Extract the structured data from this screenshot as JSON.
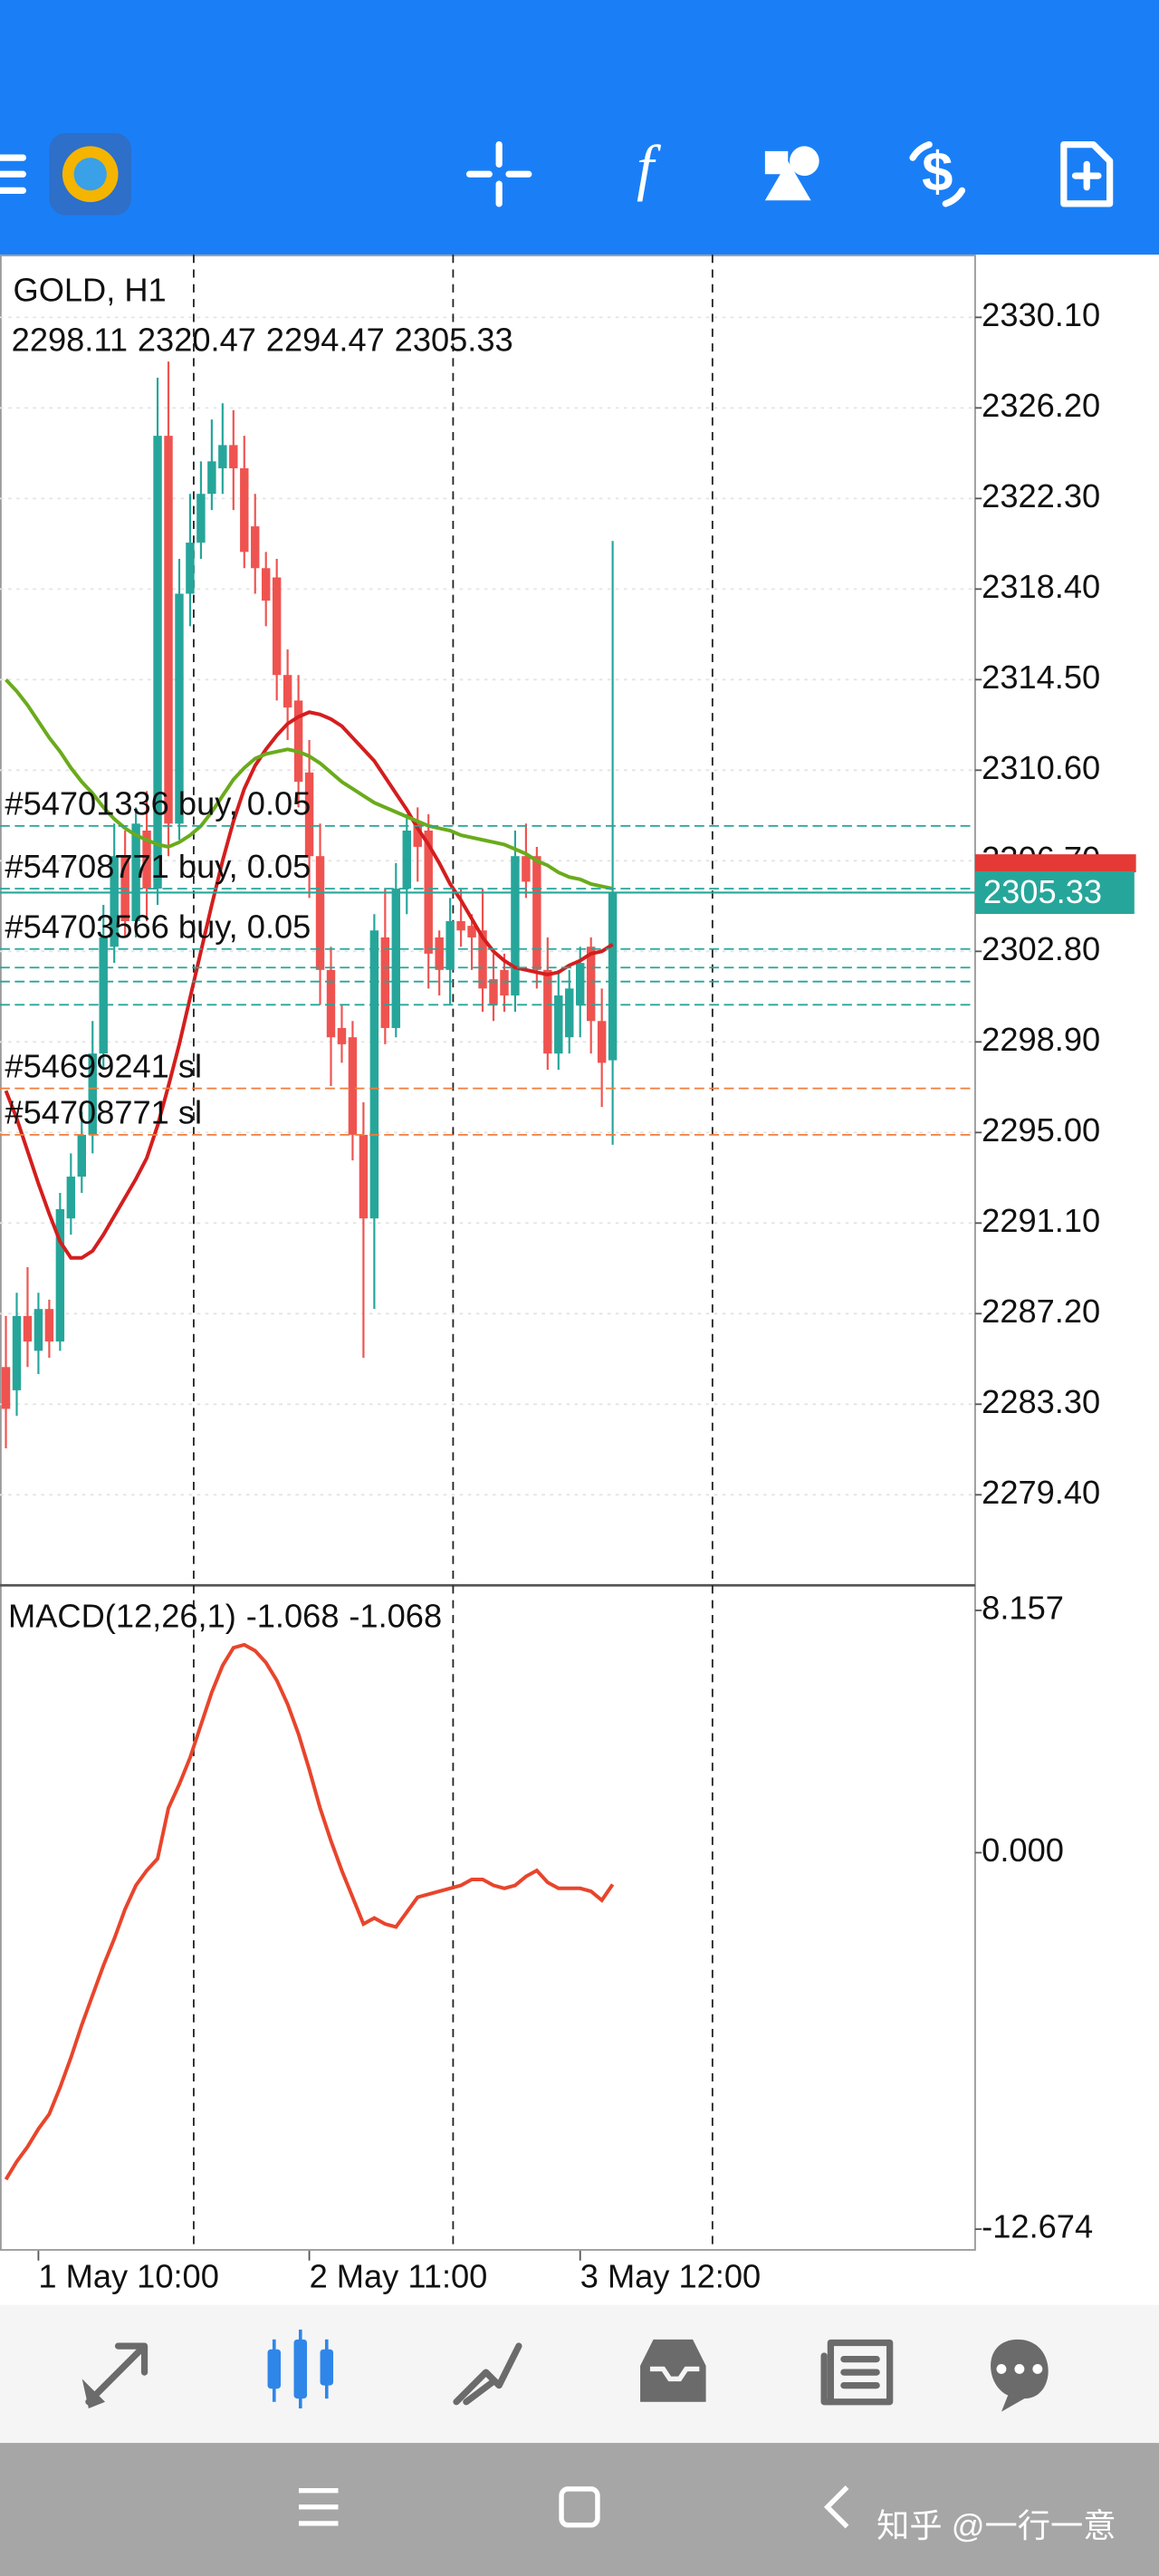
{
  "chart_data": [
    {
      "type": "candlestick",
      "title": "GOLD, H1",
      "categories": [
        null,
        null,
        null,
        "1 May 10:00",
        null,
        null,
        null,
        null,
        null,
        null,
        null,
        null,
        null,
        null,
        null,
        null,
        null,
        null,
        null,
        null,
        null,
        null,
        null,
        null,
        null,
        null,
        null,
        null,
        "2 May 11:00",
        null,
        null,
        null,
        null,
        null,
        null,
        null,
        null,
        null,
        null,
        null,
        null,
        null,
        null,
        null,
        null,
        null,
        null,
        null,
        null,
        null,
        null,
        null,
        null,
        "3 May 12:00",
        null,
        null,
        null
      ],
      "open": [
        2284.9,
        2283.9,
        2287.1,
        2285.6,
        2287.4,
        2286.0,
        2291.3,
        2293.1,
        2294.9,
        2298.4,
        2303.0,
        2306.9,
        2304.1,
        2308.0,
        2305.5,
        2325.0,
        2308.3,
        2318.2,
        2320.4,
        2322.5,
        2323.6,
        2324.6,
        2323.6,
        2321.1,
        2319.3,
        2318.9,
        2314.7,
        2313.6,
        2310.5,
        2306.9,
        2302.0,
        2299.5,
        2299.1,
        2294.9,
        2291.3,
        2303.4,
        2299.5,
        2305.5,
        2308.3,
        2308.0,
        2303.4,
        2302.0,
        2304.1,
        2303.9,
        2303.7,
        2301.6,
        2302.0,
        2300.9,
        2306.9,
        2306.9,
        2302.0,
        2298.4,
        2299.1,
        2300.5,
        2303.0,
        2299.8,
        2298.11
      ],
      "high": [
        2287.1,
        2288.1,
        2289.2,
        2288.1,
        2287.8,
        2292.4,
        2294.1,
        2295.9,
        2299.8,
        2304.8,
        2308.3,
        2308.0,
        2309.0,
        2309.7,
        2327.5,
        2328.2,
        2319.7,
        2322.5,
        2323.9,
        2325.7,
        2326.4,
        2326.1,
        2325.0,
        2322.5,
        2320.0,
        2319.7,
        2315.8,
        2314.7,
        2311.9,
        2308.3,
        2303.0,
        2300.5,
        2299.8,
        2296.3,
        2304.4,
        2305.5,
        2306.6,
        2308.7,
        2309.0,
        2308.7,
        2303.7,
        2305.1,
        2305.5,
        2304.4,
        2305.5,
        2302.7,
        2302.7,
        2308.0,
        2308.3,
        2307.3,
        2303.4,
        2302.0,
        2302.0,
        2303.0,
        2303.4,
        2301.2,
        2320.47
      ],
      "low": [
        2281.4,
        2282.8,
        2284.9,
        2284.6,
        2285.3,
        2285.6,
        2290.6,
        2292.4,
        2294.1,
        2297.7,
        2302.3,
        2303.4,
        2303.4,
        2304.1,
        2304.8,
        2306.9,
        2307.6,
        2316.8,
        2319.7,
        2321.8,
        2322.5,
        2321.8,
        2319.3,
        2318.2,
        2316.8,
        2313.6,
        2311.9,
        2309.0,
        2305.1,
        2300.5,
        2297.0,
        2298.0,
        2293.8,
        2285.3,
        2287.4,
        2298.8,
        2299.1,
        2304.4,
        2305.8,
        2301.2,
        2300.9,
        2300.5,
        2303.0,
        2302.0,
        2300.2,
        2299.8,
        2300.2,
        2300.2,
        2305.1,
        2301.2,
        2297.7,
        2297.7,
        2298.4,
        2299.1,
        2298.4,
        2296.1,
        2294.47
      ],
      "close": [
        2283.1,
        2287.1,
        2286.0,
        2287.4,
        2286.0,
        2291.7,
        2293.1,
        2294.9,
        2298.4,
        2303.4,
        2306.9,
        2304.1,
        2308.3,
        2305.5,
        2325.0,
        2308.3,
        2318.2,
        2320.4,
        2322.5,
        2323.9,
        2324.6,
        2323.6,
        2320.0,
        2319.3,
        2317.9,
        2314.7,
        2313.3,
        2310.1,
        2306.9,
        2302.0,
        2299.1,
        2298.8,
        2294.9,
        2291.3,
        2303.7,
        2299.5,
        2305.5,
        2308.0,
        2307.3,
        2302.7,
        2302.0,
        2304.1,
        2303.7,
        2303.4,
        2301.2,
        2300.5,
        2300.9,
        2306.9,
        2305.8,
        2302.0,
        2298.4,
        2300.9,
        2301.2,
        2302.3,
        2299.8,
        2298.0,
        2305.33
      ],
      "up_color": "#26a69a",
      "down_color": "#ef5350",
      "overlays": [
        {
          "color": "#d41e1e",
          "values": [
            2296.8,
            2295.6,
            2294.2,
            2292.8,
            2291.5,
            2290.3,
            2289.6,
            2289.6,
            2289.9,
            2290.6,
            2291.4,
            2292.2,
            2293.0,
            2293.9,
            2295.3,
            2297.0,
            2298.8,
            2300.8,
            2302.8,
            2304.8,
            2306.7,
            2308.4,
            2309.8,
            2310.8,
            2311.5,
            2312.1,
            2312.6,
            2312.9,
            2313.1,
            2313.0,
            2312.8,
            2312.5,
            2312.0,
            2311.5,
            2311.0,
            2310.3,
            2309.6,
            2308.9,
            2308.1,
            2307.4,
            2306.6,
            2305.7,
            2305.0,
            2304.2,
            2303.4,
            2302.8,
            2302.4,
            2302.1,
            2302.0,
            2301.9,
            2301.8,
            2301.9,
            2302.2,
            2302.4,
            2302.7,
            2302.8,
            2303.1
          ]
        },
        {
          "color": "#6aab1c",
          "values": [
            2314.5,
            2314.0,
            2313.4,
            2312.7,
            2312.0,
            2311.4,
            2310.7,
            2310.1,
            2309.6,
            2309.0,
            2308.5,
            2308.1,
            2307.8,
            2307.6,
            2307.4,
            2307.3,
            2307.5,
            2307.8,
            2308.2,
            2308.8,
            2309.5,
            2310.2,
            2310.7,
            2311.1,
            2311.3,
            2311.4,
            2311.5,
            2311.4,
            2311.2,
            2310.9,
            2310.5,
            2310.1,
            2309.8,
            2309.5,
            2309.2,
            2309.0,
            2308.8,
            2308.6,
            2308.4,
            2308.2,
            2308.1,
            2308.0,
            2307.8,
            2307.7,
            2307.6,
            2307.5,
            2307.4,
            2307.2,
            2307.0,
            2306.7,
            2306.5,
            2306.2,
            2306.0,
            2305.9,
            2305.7,
            2305.6,
            2305.5
          ]
        }
      ],
      "levels": [
        {
          "value": 2308.2,
          "label": "#54701336 buy, 0.05",
          "color": "#26a69a"
        },
        {
          "value": 2305.5,
          "label": "#54708771 buy, 0.05",
          "color": "#26a69a"
        },
        {
          "value": 2302.9,
          "label": "#54703566 buy, 0.05",
          "color": "#26a69a"
        },
        {
          "value": 2302.1,
          "label": null,
          "color": "#26a69a"
        },
        {
          "value": 2301.5,
          "label": null,
          "color": "#26a69a"
        },
        {
          "value": 2300.5,
          "label": null,
          "color": "#26a69a"
        },
        {
          "value": 2296.9,
          "label": "#54699241 sl",
          "color": "#f07d3c"
        },
        {
          "value": 2294.9,
          "label": "#54708771 sl",
          "color": "#f07d3c"
        }
      ],
      "ylim": [
        2275.5,
        2332.8
      ],
      "yticks": [
        {
          "value": 2330.1,
          "label": "2330.10"
        },
        {
          "value": 2326.2,
          "label": "2326.20"
        },
        {
          "value": 2322.3,
          "label": "2322.30"
        },
        {
          "value": 2318.4,
          "label": "2318.40"
        },
        {
          "value": 2314.5,
          "label": "2314.50"
        },
        {
          "value": 2310.6,
          "label": "2310.60"
        },
        {
          "value": 2306.7,
          "label": "2306.70"
        },
        {
          "value": 2302.8,
          "label": "2302.80"
        },
        {
          "value": 2298.9,
          "label": "2298.90"
        },
        {
          "value": 2295.0,
          "label": "2295.00"
        },
        {
          "value": 2291.1,
          "label": "2291.10"
        },
        {
          "value": 2287.2,
          "label": "2287.20"
        },
        {
          "value": 2283.3,
          "label": "2283.30"
        },
        {
          "value": 2279.4,
          "label": "2279.40"
        }
      ],
      "grid": true
    },
    {
      "type": "line",
      "title": "MACD(12,26,1)",
      "color": "#e8452c",
      "values": [
        -11.0,
        -10.4,
        -9.9,
        -9.3,
        -8.8,
        -7.9,
        -6.9,
        -5.8,
        -4.8,
        -3.8,
        -2.9,
        -1.9,
        -1.1,
        -0.6,
        -0.2,
        1.5,
        2.3,
        3.2,
        4.3,
        5.4,
        6.3,
        6.9,
        7.0,
        6.8,
        6.4,
        5.8,
        5.0,
        4.0,
        2.8,
        1.5,
        0.4,
        -0.6,
        -1.5,
        -2.4,
        -2.2,
        -2.4,
        -2.5,
        -2.0,
        -1.5,
        -1.4,
        -1.3,
        -1.2,
        -1.1,
        -0.9,
        -0.9,
        -1.1,
        -1.2,
        -1.1,
        -0.8,
        -0.6,
        -1.0,
        -1.2,
        -1.2,
        -1.2,
        -1.3,
        -1.6,
        -1.068
      ],
      "ylim": [
        -13.4,
        9.0
      ],
      "yticks": [
        8.157,
        {
          "value": 0,
          "label": "0.000"
        },
        -12.674
      ]
    }
  ],
  "watermark": "知乎 @一行一意"
}
